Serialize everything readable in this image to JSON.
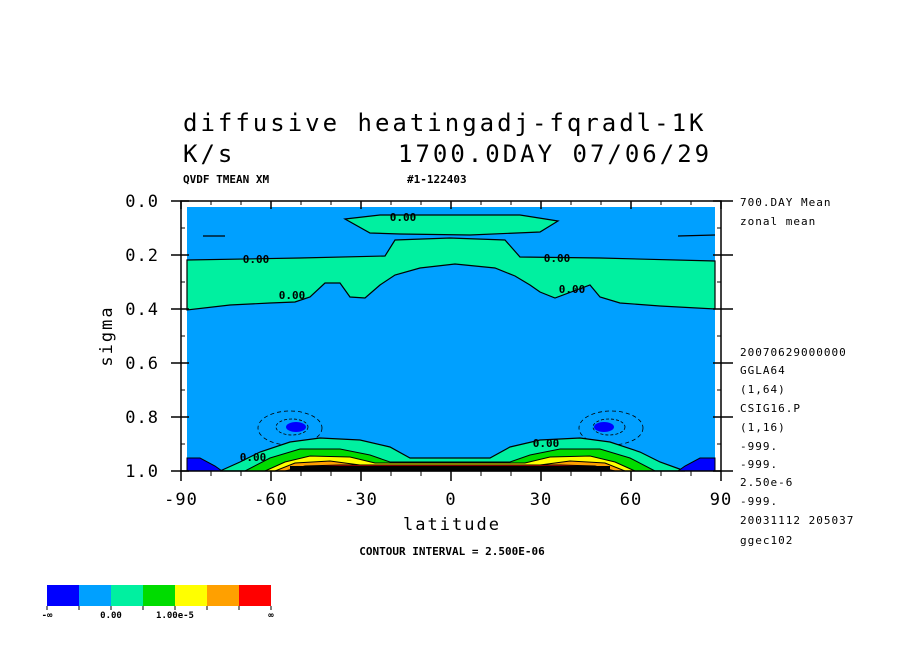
{
  "title_line1": "diffusive heatingadj-fqradl-1K",
  "title_line2_left": "K/s",
  "title_line2_right": "1700.0DAY 07/06/29",
  "subtitle_left": "QVDF TMEAN XM",
  "subtitle_right": "#1-122403",
  "contour_interval_text": "CONTOUR INTERVAL = 2.500E-06",
  "side_info": [
    "700.DAY Mean",
    "zonal mean",
    "20070629000000",
    "GGLA64",
    "(1,64)",
    "CSIG16.P",
    "(1,16)",
    "-999.",
    "-999.",
    "2.50e-6",
    "-999.",
    "20031112 205037",
    "ggec102"
  ],
  "colors": {
    "blue_dark": "#0000ff",
    "blue": "#00a0ff",
    "cyan_green": "#00f0a0",
    "green": "#00dc00",
    "yellow": "#ffff00",
    "orange": "#ffa000",
    "red": "#ff0000"
  },
  "chart_data": {
    "type": "heatmap",
    "subtype": "latitude-sigma contour plot (filled contours)",
    "xlabel": "latitude",
    "ylabel": "sigma",
    "xlim": [
      -90,
      90
    ],
    "ylim": [
      1.0,
      0.0
    ],
    "x_ticks": [
      "-90",
      "-60",
      "-30",
      "0",
      "30",
      "60",
      "90"
    ],
    "y_ticks": [
      "0.0",
      "0.2",
      "0.4",
      "0.6",
      "0.8",
      "1.0"
    ],
    "contour_labels": [
      "0.00",
      "0.00",
      "0.00",
      "0.00",
      "0.00",
      "0.00",
      "0.00",
      "0.00"
    ],
    "colorbar": {
      "labels": [
        "-∞",
        "0.00",
        "1.00e-5",
        "∞"
      ],
      "levels": [
        "#0000ff",
        "#00a0ff",
        "#00f0a0",
        "#00dc00",
        "#ffff00",
        "#ffa000",
        "#ff0000"
      ]
    },
    "regions": [
      {
        "name": "upper positive band",
        "sigma_range": [
          0.06,
          0.13
        ],
        "lat_range": [
          -30,
          30
        ],
        "level": "#00f0a0"
      },
      {
        "name": "positive band",
        "sigma_range": [
          0.21,
          0.4
        ],
        "lat_range": [
          -90,
          90
        ],
        "level": "#00f0a0"
      },
      {
        "name": "negative minima",
        "lat": [
          -52,
          52
        ],
        "sigma": 0.84,
        "level": "#0000ff"
      },
      {
        "name": "near-surface heating",
        "sigma_range": [
          0.93,
          1.0
        ],
        "lat_range": [
          -80,
          80
        ],
        "level": "#ff0000"
      }
    ]
  }
}
